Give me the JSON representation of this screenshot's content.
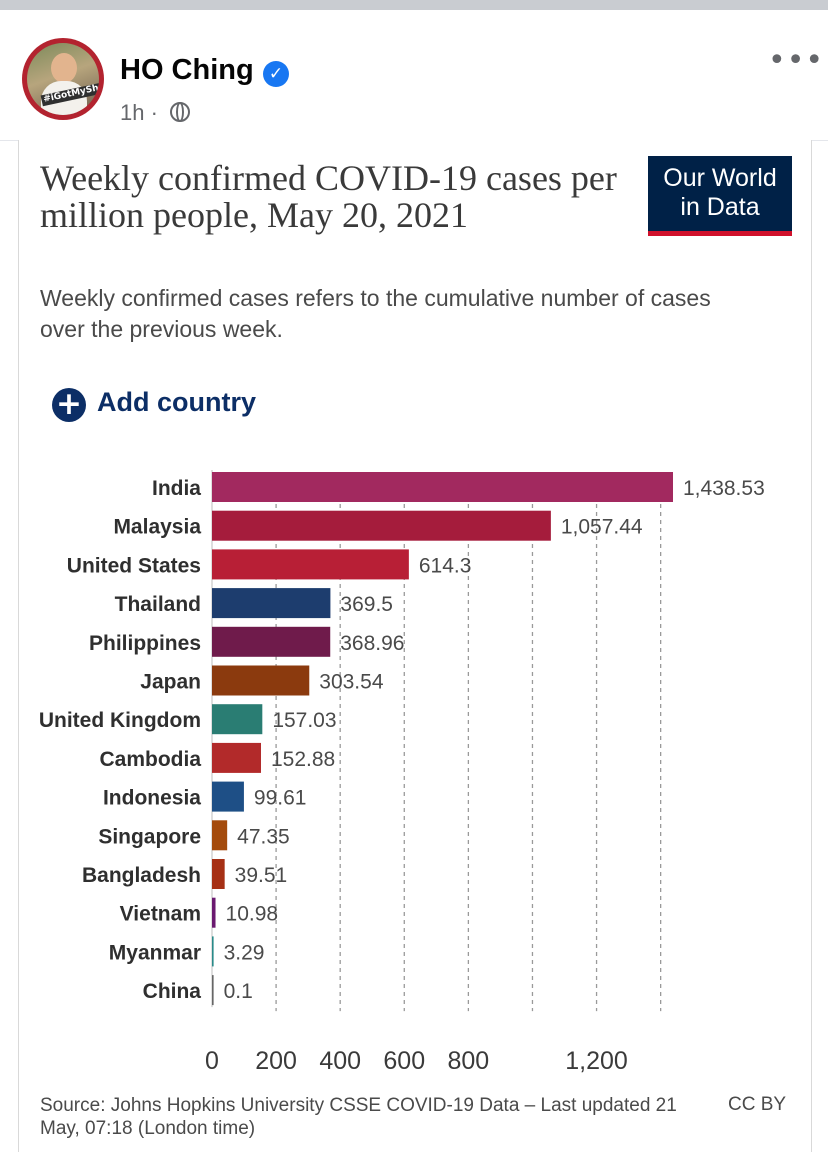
{
  "post": {
    "author": "HO Ching",
    "time": "1h",
    "separator": "·",
    "verified_icon": "verified-badge-icon",
    "more_icon": "more-options-icon",
    "privacy_icon": "globe-icon",
    "avatar_text": "#iGotMyShot"
  },
  "card": {
    "logo_line1": "Our World",
    "logo_line2": "in Data",
    "add_country_label": "Add country",
    "add_icon": "plus-circle-icon",
    "source": "Source: Johns Hopkins University CSSE COVID-19 Data – Last updated 21 May, 07:18 (London time)",
    "license": "CC BY"
  },
  "chart_data": {
    "type": "bar",
    "orientation": "horizontal",
    "title": "Weekly confirmed COVID-19 cases per million people, May 20, 2021",
    "subtitle": "Weekly confirmed cases refers to the cumulative number of cases over the previous week.",
    "categories": [
      "India",
      "Malaysia",
      "United States",
      "Thailand",
      "Philippines",
      "Japan",
      "United Kingdom",
      "Cambodia",
      "Indonesia",
      "Singapore",
      "Bangladesh",
      "Vietnam",
      "Myanmar",
      "China"
    ],
    "values": [
      1438.53,
      1057.44,
      614.3,
      369.5,
      368.96,
      303.54,
      157.03,
      152.88,
      99.61,
      47.35,
      39.51,
      10.98,
      3.29,
      0.1
    ],
    "value_labels": [
      "1,438.53",
      "1,057.44",
      "614.3",
      "369.5",
      "368.96",
      "303.54",
      "157.03",
      "152.88",
      "99.61",
      "47.35",
      "39.51",
      "10.98",
      "3.29",
      "0.1"
    ],
    "colors": [
      "#a2295f",
      "#a51c3c",
      "#b81f36",
      "#1d3d6e",
      "#6f1b4b",
      "#8b3a0e",
      "#2a7d73",
      "#b22a2a",
      "#1e4f86",
      "#a44b0c",
      "#a63015",
      "#6b1a70",
      "#2a8a89",
      "#666666"
    ],
    "x_ticks": [
      0,
      200,
      400,
      600,
      800,
      1200
    ],
    "x_tick_labels": [
      "0",
      "200",
      "400",
      "600",
      "800",
      "1,200"
    ],
    "gridlines": [
      200,
      400,
      600,
      800,
      1000,
      1200,
      1400
    ],
    "xlim": [
      0,
      1450
    ],
    "grid": true
  }
}
